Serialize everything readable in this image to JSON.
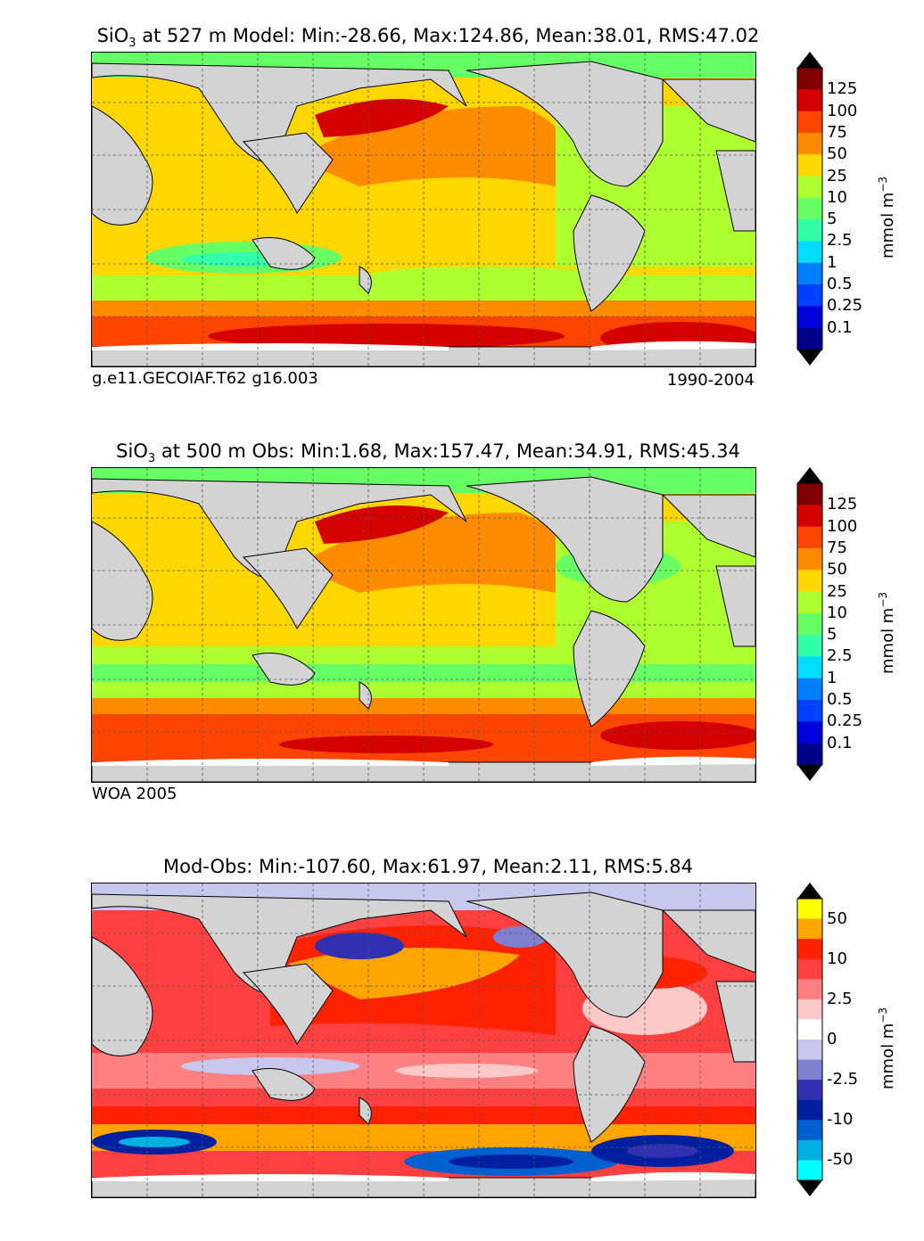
{
  "panels": [
    {
      "title_var": "SiO",
      "title_sub": "3",
      "title_rest": " at 527 m Model: Min:-28.66, Max:124.86, Mean:38.01, RMS:47.02",
      "foot_left": "g.e11.GECOIAF.T62 g16.003",
      "foot_right": "1990-2004",
      "unit": "mmol m",
      "unit_sup": "−3"
    },
    {
      "title_var": "SiO",
      "title_sub": "3",
      "title_rest": " at 500 m Obs: Min:1.68, Max:157.47, Mean:34.91, RMS:45.34",
      "foot_left": "WOA 2005",
      "foot_right": "",
      "unit": "mmol m",
      "unit_sup": "−3"
    },
    {
      "title_var": "",
      "title_sub": "",
      "title_rest": "Mod-Obs: Min:-107.60, Max:61.97, Mean:2.11, RMS:5.84",
      "foot_left": "",
      "foot_right": "",
      "unit": "mmol m",
      "unit_sup": "−3"
    }
  ],
  "colorbars": {
    "absolute": {
      "labels": [
        "125",
        "100",
        "75",
        "50",
        "25",
        "10",
        "5",
        "2.5",
        "1",
        "0.5",
        "0.25",
        "0.1"
      ],
      "colors": [
        "#7f0000",
        "#d40000",
        "#ff4500",
        "#ff8c00",
        "#ffd700",
        "#adff2f",
        "#66ff66",
        "#33ffaa",
        "#00ddff",
        "#0080ff",
        "#0040ff",
        "#0000dd",
        "#00008b"
      ],
      "top_triangle": "#000000",
      "bottom_triangle": "#000000"
    },
    "difference": {
      "labels": [
        "50",
        "10",
        "2.5",
        "0",
        "-2.5",
        "-10",
        "-50"
      ],
      "colors": [
        "#ffff00",
        "#ffa500",
        "#ff2200",
        "#ff4040",
        "#ff8080",
        "#ffc8c8",
        "#ffffff",
        "#c8c8ee",
        "#8080d0",
        "#3030b0",
        "#0020a0",
        "#0060d0",
        "#00b0e0",
        "#00ffff"
      ],
      "top_triangle": "#000000",
      "bottom_triangle": "#000000"
    }
  },
  "map": {
    "land_color": "#d3d3d3",
    "ocean_color_sea_ice": "#ffffff"
  }
}
